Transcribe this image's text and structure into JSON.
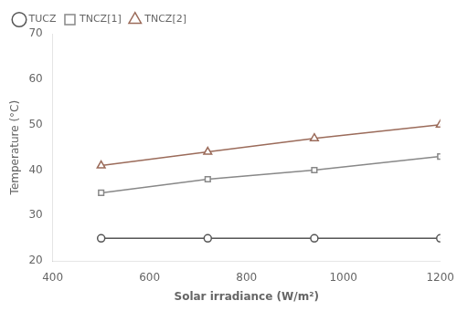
{
  "chart_data": {
    "type": "line",
    "x": [
      500,
      720,
      940,
      1200
    ],
    "series": [
      {
        "name": "TUCZ",
        "color": "#555555",
        "marker": "circle",
        "values": [
          25,
          25,
          25,
          25
        ]
      },
      {
        "name": "TNCZ[1]",
        "color": "#888888",
        "marker": "square",
        "values": [
          35,
          38,
          40,
          43
        ]
      },
      {
        "name": "TNCZ[2]",
        "color": "#9b6b5a",
        "marker": "triangle",
        "values": [
          41,
          44,
          47,
          50
        ]
      }
    ],
    "xlabel": "Solar irradiance (W/m²)",
    "ylabel": "Temperature (°C)",
    "xlim": [
      400,
      1200
    ],
    "ylim": [
      20,
      70
    ],
    "xticks": [
      400,
      600,
      800,
      1000,
      1200
    ],
    "yticks": [
      20,
      30,
      40,
      50,
      60,
      70
    ],
    "grid": false,
    "legend": "upper left"
  }
}
